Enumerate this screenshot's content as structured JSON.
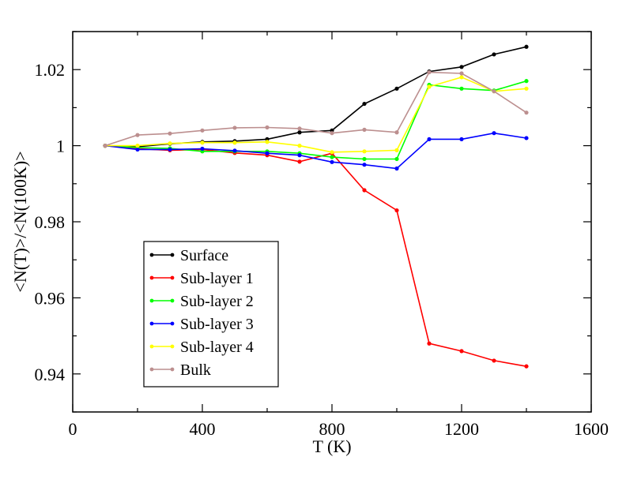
{
  "chart_data": {
    "type": "line",
    "title": "",
    "xlabel": "T (K)",
    "ylabel": "<N(T)>/<N(100K)>",
    "xlim": [
      0,
      1600
    ],
    "ylim": [
      0.93,
      1.03
    ],
    "x_ticks": [
      0,
      400,
      800,
      1200,
      1600
    ],
    "x_tick_labels": [
      "0",
      "400",
      "800",
      "1200",
      "1600"
    ],
    "y_ticks": [
      0.94,
      0.96,
      0.98,
      1.0,
      1.02
    ],
    "y_tick_labels": [
      "0.94",
      "0.96",
      "0.98",
      "1",
      "1.02"
    ],
    "grid": false,
    "legend_position": "bottom-left",
    "x": [
      100,
      200,
      300,
      400,
      500,
      600,
      700,
      800,
      900,
      1000,
      1100,
      1200,
      1300,
      1400
    ],
    "series": [
      {
        "name": "Surface",
        "color": "#000000",
        "values": [
          1.0,
          0.9997,
          1.0005,
          1.001,
          1.0012,
          1.0017,
          1.0035,
          1.004,
          1.011,
          1.015,
          1.0195,
          1.0207,
          1.024,
          1.026
        ]
      },
      {
        "name": "Sub-layer 1",
        "color": "#ff0000",
        "values": [
          1.0,
          0.9992,
          0.9988,
          0.999,
          0.9981,
          0.9975,
          0.9958,
          0.998,
          0.9883,
          0.983,
          0.948,
          0.946,
          0.9435,
          0.942
        ]
      },
      {
        "name": "Sub-layer 2",
        "color": "#00ff00",
        "values": [
          1.0,
          0.9995,
          0.9993,
          0.9985,
          0.9985,
          0.9985,
          0.998,
          0.997,
          0.9965,
          0.9965,
          1.016,
          1.015,
          1.0145,
          1.017
        ]
      },
      {
        "name": "Sub-layer 3",
        "color": "#0000ff",
        "values": [
          1.0,
          0.999,
          0.999,
          0.9992,
          0.9987,
          0.998,
          0.9975,
          0.9957,
          0.995,
          0.994,
          1.0017,
          1.0017,
          1.0033,
          1.002
        ]
      },
      {
        "name": "Sub-layer 4",
        "color": "#ffff00",
        "values": [
          1.0,
          1.0,
          1.0006,
          1.0008,
          1.0008,
          1.001,
          1.0,
          0.9983,
          0.9985,
          0.9988,
          1.0155,
          1.018,
          1.0143,
          1.015
        ]
      },
      {
        "name": "Bulk",
        "color": "#bc8f8f",
        "values": [
          1.0,
          1.0028,
          1.0032,
          1.004,
          1.0047,
          1.0048,
          1.0045,
          1.0033,
          1.0042,
          1.0035,
          1.0193,
          1.019,
          1.0143,
          1.0087
        ]
      }
    ]
  }
}
